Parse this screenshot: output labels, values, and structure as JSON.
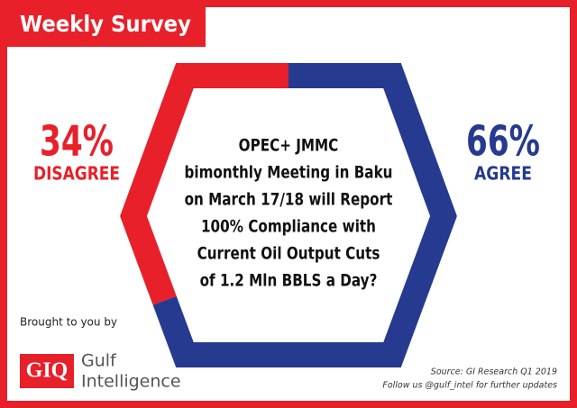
{
  "header": "Weekly Survey",
  "chart_data": {
    "type": "hexagon-ring",
    "question": [
      "OPEC+ JMMC",
      "bimonthly Meeting in Baku",
      "on March 17/18 will Report",
      "100% Compliance with",
      "Current Oil Output Cuts",
      "of 1.2 Mln BBLS a Day?"
    ],
    "categories": [
      "DISAGREE",
      "AGREE"
    ],
    "values": [
      34,
      66
    ],
    "value_labels": [
      "34%",
      "66%"
    ],
    "colors": [
      "#e8202a",
      "#263a8f"
    ]
  },
  "footer": {
    "sponsor_intro": "Brought to you by",
    "logo_mark": "GIQ",
    "logo_line1": "Gulf",
    "logo_line2": "Intelligence",
    "source": "Source: GI Research Q1 2019",
    "follow": "Follow us @gulf_intel for further updates"
  }
}
